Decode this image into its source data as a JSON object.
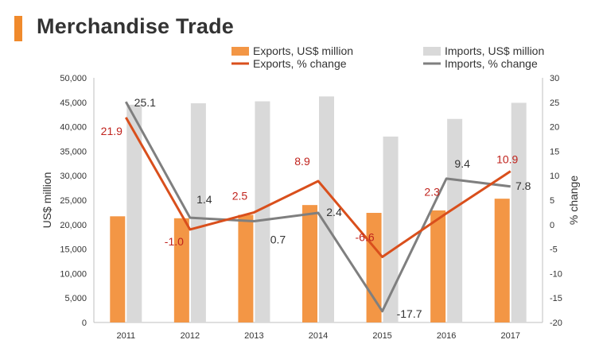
{
  "header": {
    "title": "Merchandise Trade"
  },
  "colors": {
    "exports_bar": "#f39645",
    "imports_bar": "#d9d9d9",
    "exports_line": "#d94f1c",
    "imports_line": "#7f7f7f",
    "exports_label": "#c0231d",
    "imports_label": "#333333",
    "title_accent": "#f08a2c"
  },
  "chart_data": {
    "type": "bar",
    "categories": [
      "2011",
      "2012",
      "2013",
      "2014",
      "2015",
      "2016",
      "2017"
    ],
    "series": [
      {
        "name": "Exports, US$ million",
        "type": "bar",
        "axis": "left",
        "values": [
          21700,
          21300,
          22000,
          24000,
          22400,
          22900,
          25300
        ]
      },
      {
        "name": "Imports, US$ million",
        "type": "bar",
        "axis": "left",
        "values": [
          44500,
          44800,
          45200,
          46200,
          38000,
          41600,
          44900
        ]
      },
      {
        "name": "Exports, % change",
        "type": "line",
        "axis": "right",
        "values": [
          21.9,
          -1.0,
          2.5,
          8.9,
          -6.6,
          2.3,
          10.9
        ],
        "labels": [
          "21.9",
          "-1.0",
          "2.5",
          "8.9",
          "-6.6",
          "2.3",
          "10.9"
        ]
      },
      {
        "name": "Imports, % change",
        "type": "line",
        "axis": "right",
        "values": [
          25.1,
          1.4,
          0.7,
          2.4,
          -17.7,
          9.4,
          7.8
        ],
        "labels": [
          "25.1",
          "1.4",
          "0.7",
          "2.4",
          "-17.7",
          "9.4",
          "7.8"
        ]
      }
    ],
    "ylabel": "US$ million",
    "y2label": "% change",
    "ylim": [
      0,
      50000
    ],
    "y2lim": [
      -20,
      30
    ],
    "yticks": [
      "0",
      "5,000",
      "10,000",
      "15,000",
      "20,000",
      "25,000",
      "30,000",
      "35,000",
      "40,000",
      "45,000",
      "50,000"
    ],
    "y2ticks": [
      "-20",
      "-15",
      "-10",
      "-5",
      "0",
      "5",
      "10",
      "15",
      "20",
      "25",
      "30"
    ],
    "grid": false,
    "legend_position": "top"
  }
}
